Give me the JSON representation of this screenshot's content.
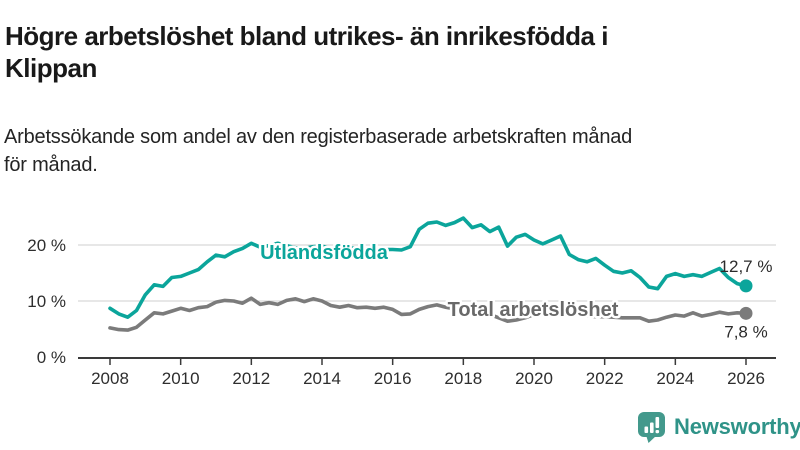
{
  "header": {
    "title": "Högre arbetslöshet bland utrikes- än inrikesfödda i\nKlippan",
    "subtitle": "Arbetssökande som andel av den registerbaserade arbetskraften månad\nför månad."
  },
  "footer": {
    "brand": "Newsworthy",
    "icon": "newsworthy-bar-chart-speech-bubble-icon",
    "icon_color": "#43998C",
    "text_color": "#2F9388"
  },
  "colors": {
    "axis": "#3a3a3a",
    "grid": "#cfcfcf",
    "tick_text": "#2e2e2e",
    "end_label_text": "#2b2b2b",
    "background": "#ffffff"
  },
  "chart_data": {
    "type": "line",
    "title": "Högre arbetslöshet bland utrikes- än inrikesfödda i Klippan",
    "subtitle": "Arbetssökande som andel av den registerbaserade arbetskraften månad för månad.",
    "unit": "percent of registered labour force",
    "x_unit": "year (monthly series, shown 2008–2026)",
    "xlim": [
      2007.1,
      2026.9
    ],
    "ylim": [
      0,
      26
    ],
    "grid": "horizontal only",
    "legend_position": "labels inline on lines",
    "x_ticks": [
      2008,
      2010,
      2012,
      2014,
      2016,
      2018,
      2020,
      2022,
      2024,
      2026
    ],
    "y_ticks": [
      {
        "value": 0,
        "label": "0 %"
      },
      {
        "value": 10,
        "label": "10 %"
      },
      {
        "value": 20,
        "label": "20 %"
      }
    ],
    "series": [
      {
        "name": "Utlandsfödda",
        "color": "#0BA59B",
        "label_color": "#0BA59B",
        "end_value": 12.7,
        "end_label": "12,7 %",
        "x_start": 2008,
        "x_step": 0.25,
        "values": [
          8.7,
          7.7,
          7.1,
          8.3,
          11.1,
          12.9,
          12.6,
          14.2,
          14.4,
          15.0,
          15.6,
          17.0,
          18.2,
          17.9,
          18.8,
          19.4,
          20.3,
          19.6,
          19.9,
          20.3,
          19.9,
          19.5,
          19.4,
          19.7,
          19.8,
          19.4,
          19.1,
          19.4,
          19.5,
          19.1,
          19.0,
          19.2,
          19.2,
          19.1,
          19.7,
          22.8,
          23.9,
          24.1,
          23.5,
          24.0,
          24.8,
          23.1,
          23.6,
          22.4,
          23.2,
          19.8,
          21.4,
          21.9,
          20.9,
          20.2,
          20.9,
          21.6,
          18.3,
          17.4,
          17.0,
          17.6,
          16.4,
          15.3,
          15.0,
          15.4,
          14.2,
          12.5,
          12.2,
          14.4,
          14.9,
          14.4,
          14.7,
          14.4,
          15.1,
          15.8,
          14.2,
          13.1,
          12.7
        ]
      },
      {
        "name": "Total arbetslöshet",
        "color": "#7B7B7B",
        "label_color": "#696969",
        "end_value": 7.8,
        "end_label": "7,8 %",
        "x_start": 2008,
        "x_step": 0.25,
        "values": [
          5.2,
          4.9,
          4.8,
          5.3,
          6.6,
          7.9,
          7.7,
          8.2,
          8.7,
          8.3,
          8.8,
          9.0,
          9.8,
          10.1,
          10.0,
          9.6,
          10.5,
          9.4,
          9.7,
          9.4,
          10.1,
          10.4,
          9.9,
          10.4,
          10.0,
          9.2,
          8.9,
          9.2,
          8.8,
          8.9,
          8.7,
          8.9,
          8.5,
          7.6,
          7.7,
          8.5,
          9.0,
          9.3,
          8.9,
          8.6,
          8.8,
          8.4,
          8.0,
          7.6,
          7.0,
          6.4,
          6.6,
          7.0,
          7.6,
          8.2,
          8.5,
          8.3,
          8.0,
          7.7,
          7.4,
          7.2,
          7.2,
          7.1,
          7.0,
          7.0,
          7.0,
          6.4,
          6.6,
          7.1,
          7.5,
          7.3,
          7.9,
          7.3,
          7.6,
          8.0,
          7.7,
          7.9,
          7.8
        ]
      }
    ]
  }
}
